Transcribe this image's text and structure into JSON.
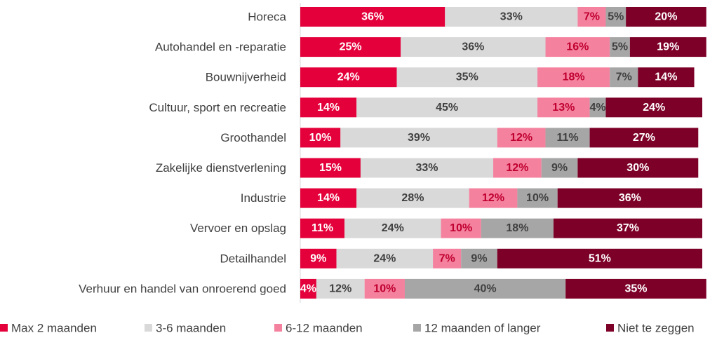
{
  "chart_data": {
    "type": "stacked-bar-horizontal",
    "categories": [
      "Horeca",
      "Autohandel en -reparatie",
      "Bouwnijverheid",
      "Cultuur, sport en recreatie",
      "Groothandel",
      "Zakelijke dienstverlening",
      "Industrie",
      "Vervoer en opslag",
      "Detailhandel",
      "Verhuur en handel van onroerend goed"
    ],
    "xlim": [
      0,
      100
    ],
    "series": [
      {
        "name": "Max 2 maanden",
        "color": "#e4003a",
        "values": [
          36,
          25,
          24,
          14,
          10,
          15,
          14,
          11,
          9,
          4
        ],
        "value_labels": [
          "36%",
          "25%",
          "24%",
          "14%",
          "10%",
          "15%",
          "14%",
          "11%",
          "9%",
          "4%"
        ]
      },
      {
        "name": "3-6 maanden",
        "color": "#d9d9d9",
        "values": [
          33,
          36,
          35,
          45,
          39,
          33,
          28,
          24,
          24,
          12
        ],
        "value_labels": [
          "33%",
          "36%",
          "35%",
          "45%",
          "39%",
          "33%",
          "28%",
          "24%",
          "24%",
          "12%"
        ]
      },
      {
        "name": "6-12 maanden",
        "color": "#f4829f",
        "values": [
          7,
          16,
          18,
          13,
          12,
          12,
          12,
          10,
          7,
          10
        ],
        "value_labels": [
          "7%",
          "16%",
          "18%",
          "13%",
          "12%",
          "12%",
          "12%",
          "10%",
          "7%",
          "10%"
        ]
      },
      {
        "name": "12 maanden of langer",
        "color": "#a6a6a6",
        "values": [
          5,
          5,
          7,
          4,
          11,
          9,
          10,
          18,
          9,
          40
        ],
        "value_labels": [
          "5%",
          "5%",
          "7%",
          "4%",
          "11%",
          "9%",
          "10%",
          "18%",
          "9%",
          "40%"
        ]
      },
      {
        "name": "Niet te zeggen",
        "color": "#7d0028",
        "values": [
          20,
          19,
          14,
          24,
          27,
          30,
          36,
          37,
          51,
          35
        ],
        "value_labels": [
          "20%",
          "19%",
          "14%",
          "24%",
          "27%",
          "30%",
          "36%",
          "37%",
          "51%",
          "35%"
        ]
      }
    ],
    "legend": "bottom"
  }
}
